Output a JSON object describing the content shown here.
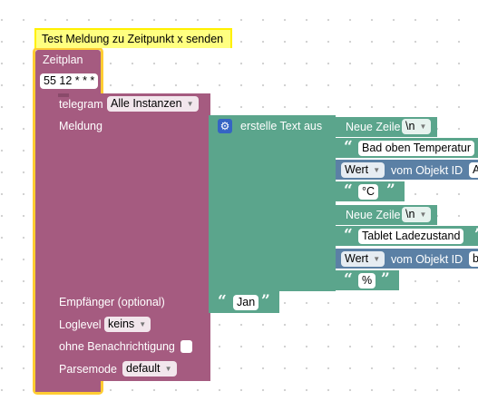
{
  "comment": {
    "text": "Test Meldung zu Zeitpunkt x senden"
  },
  "schedule": {
    "label": "Zeitplan",
    "cron": "55 12 * * *"
  },
  "telegram": {
    "label": "telegram",
    "instance": "Alle Instanzen",
    "message_label": "Meldung",
    "recipient_label": "Empfänger (optional)",
    "recipient_value": "Jan",
    "loglevel_label": "Loglevel",
    "loglevel_value": "keins",
    "silent_label": "ohne Benachrichtigung",
    "parsemode_label": "Parsemode",
    "parsemode_value": "default"
  },
  "text_block": {
    "label": "erstelle Text aus",
    "items": [
      {
        "type": "newline",
        "label": "Neue Zeile",
        "value": "\\n"
      },
      {
        "type": "text",
        "value": "Bad oben Temperatur"
      },
      {
        "type": "object",
        "label": "Wert",
        "of_object": "vom Objekt ID",
        "object_id": "A"
      },
      {
        "type": "text",
        "value": "°C"
      },
      {
        "type": "newline",
        "label": "Neue Zeile",
        "value": "\\n"
      },
      {
        "type": "text",
        "value": "Tablet Ladezustand"
      },
      {
        "type": "object",
        "label": "Wert",
        "of_object": "vom Objekt ID",
        "object_id": "b"
      },
      {
        "type": "text",
        "value": "%"
      }
    ]
  },
  "colors": {
    "procedure": "#a55b80",
    "text": "#5ba58c",
    "object": "#5b80a5",
    "selected": "#fc3",
    "comment_bg": "#ffff80"
  }
}
